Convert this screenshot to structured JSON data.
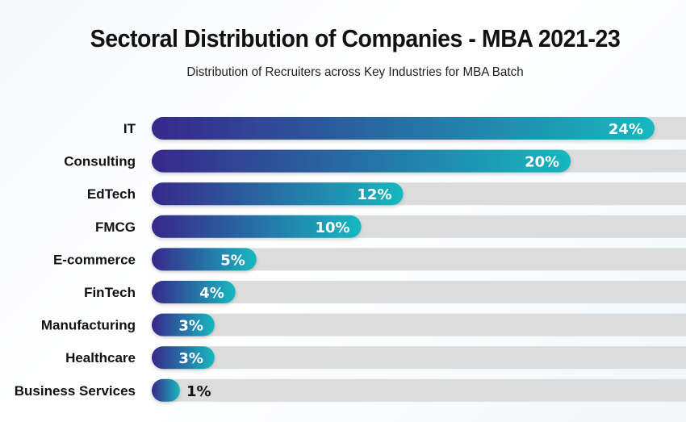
{
  "chart_data": {
    "type": "bar",
    "orientation": "horizontal",
    "title": "Sectoral Distribution of Companies - MBA 2021-23",
    "subtitle": "Distribution of Recruiters across Key Industries for MBA Batch",
    "xlabel": "",
    "ylabel": "",
    "categories": [
      "IT",
      "Consulting",
      "EdTech",
      "FMCG",
      "E-commerce",
      "FinTech",
      "Manufacturing",
      "Healthcare",
      "Business Services"
    ],
    "values": [
      24,
      20,
      12,
      10,
      5,
      4,
      3,
      3,
      1
    ],
    "value_labels": [
      "24%",
      "20%",
      "12%",
      "10%",
      "5%",
      "4%",
      "3%",
      "3%",
      "1%"
    ],
    "unit": "%",
    "grid": false,
    "legend": "none",
    "colors": {
      "bar_start": "#37288a",
      "bar_end": "#17b8bf",
      "track": "#dcdcdc",
      "label_inside": "#ffffff",
      "label_outside": "#111111"
    }
  }
}
